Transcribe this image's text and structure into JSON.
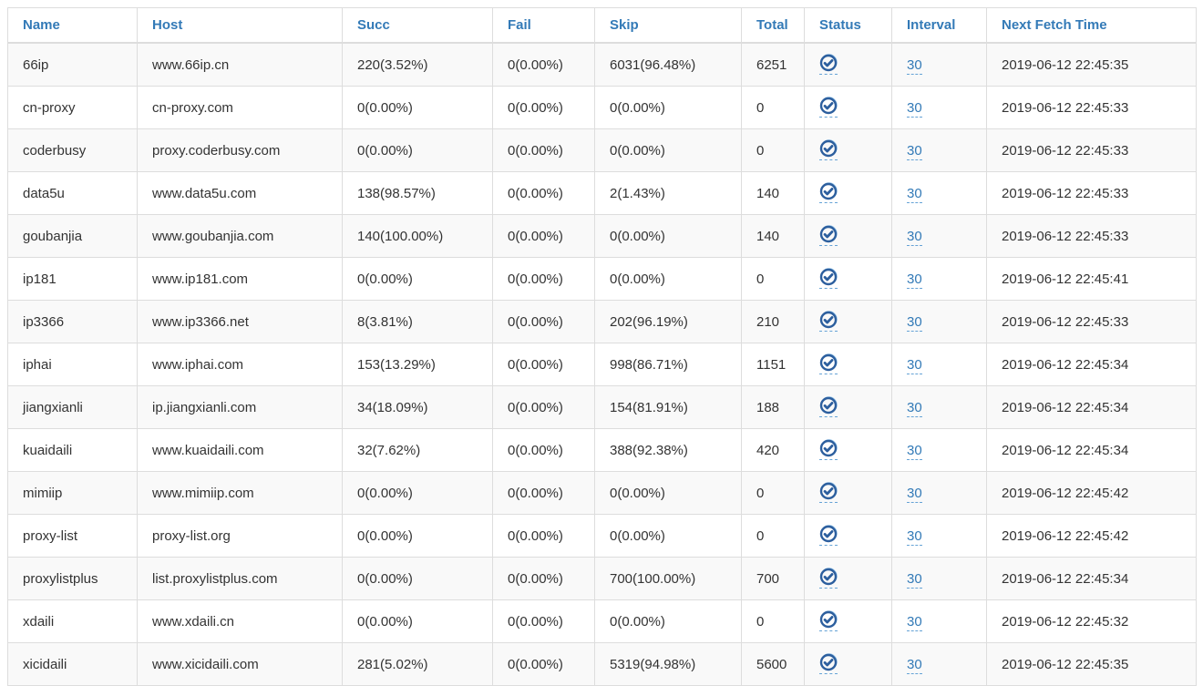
{
  "colors": {
    "header_text": "#337ab7",
    "link": "#337ab7",
    "status_icon": "#2d5f9e",
    "status_icon_halo": "#8fc0e8",
    "row_stripe": "#f9f9f9",
    "border": "#dddddd",
    "body_text": "#333333"
  },
  "table": {
    "columns": [
      {
        "key": "name",
        "label": "Name"
      },
      {
        "key": "host",
        "label": "Host"
      },
      {
        "key": "succ",
        "label": "Succ"
      },
      {
        "key": "fail",
        "label": "Fail"
      },
      {
        "key": "skip",
        "label": "Skip"
      },
      {
        "key": "total",
        "label": "Total"
      },
      {
        "key": "status",
        "label": "Status"
      },
      {
        "key": "interval",
        "label": "Interval"
      },
      {
        "key": "next_fetch_time",
        "label": "Next Fetch Time"
      }
    ],
    "status_icon_name": "check-circle-icon",
    "rows": [
      {
        "name": "66ip",
        "host": "www.66ip.cn",
        "succ": "220(3.52%)",
        "fail": "0(0.00%)",
        "skip": "6031(96.48%)",
        "total": "6251",
        "status": "ok",
        "interval": "30",
        "next_fetch_time": "2019-06-12 22:45:35"
      },
      {
        "name": "cn-proxy",
        "host": "cn-proxy.com",
        "succ": "0(0.00%)",
        "fail": "0(0.00%)",
        "skip": "0(0.00%)",
        "total": "0",
        "status": "ok",
        "interval": "30",
        "next_fetch_time": "2019-06-12 22:45:33"
      },
      {
        "name": "coderbusy",
        "host": "proxy.coderbusy.com",
        "succ": "0(0.00%)",
        "fail": "0(0.00%)",
        "skip": "0(0.00%)",
        "total": "0",
        "status": "ok",
        "interval": "30",
        "next_fetch_time": "2019-06-12 22:45:33"
      },
      {
        "name": "data5u",
        "host": "www.data5u.com",
        "succ": "138(98.57%)",
        "fail": "0(0.00%)",
        "skip": "2(1.43%)",
        "total": "140",
        "status": "ok",
        "interval": "30",
        "next_fetch_time": "2019-06-12 22:45:33"
      },
      {
        "name": "goubanjia",
        "host": "www.goubanjia.com",
        "succ": "140(100.00%)",
        "fail": "0(0.00%)",
        "skip": "0(0.00%)",
        "total": "140",
        "status": "ok",
        "interval": "30",
        "next_fetch_time": "2019-06-12 22:45:33"
      },
      {
        "name": "ip181",
        "host": "www.ip181.com",
        "succ": "0(0.00%)",
        "fail": "0(0.00%)",
        "skip": "0(0.00%)",
        "total": "0",
        "status": "ok",
        "interval": "30",
        "next_fetch_time": "2019-06-12 22:45:41"
      },
      {
        "name": "ip3366",
        "host": "www.ip3366.net",
        "succ": "8(3.81%)",
        "fail": "0(0.00%)",
        "skip": "202(96.19%)",
        "total": "210",
        "status": "ok",
        "interval": "30",
        "next_fetch_time": "2019-06-12 22:45:33"
      },
      {
        "name": "iphai",
        "host": "www.iphai.com",
        "succ": "153(13.29%)",
        "fail": "0(0.00%)",
        "skip": "998(86.71%)",
        "total": "1151",
        "status": "ok",
        "interval": "30",
        "next_fetch_time": "2019-06-12 22:45:34"
      },
      {
        "name": "jiangxianli",
        "host": "ip.jiangxianli.com",
        "succ": "34(18.09%)",
        "fail": "0(0.00%)",
        "skip": "154(81.91%)",
        "total": "188",
        "status": "ok",
        "interval": "30",
        "next_fetch_time": "2019-06-12 22:45:34"
      },
      {
        "name": "kuaidaili",
        "host": "www.kuaidaili.com",
        "succ": "32(7.62%)",
        "fail": "0(0.00%)",
        "skip": "388(92.38%)",
        "total": "420",
        "status": "ok",
        "interval": "30",
        "next_fetch_time": "2019-06-12 22:45:34"
      },
      {
        "name": "mimiip",
        "host": "www.mimiip.com",
        "succ": "0(0.00%)",
        "fail": "0(0.00%)",
        "skip": "0(0.00%)",
        "total": "0",
        "status": "ok",
        "interval": "30",
        "next_fetch_time": "2019-06-12 22:45:42"
      },
      {
        "name": "proxy-list",
        "host": "proxy-list.org",
        "succ": "0(0.00%)",
        "fail": "0(0.00%)",
        "skip": "0(0.00%)",
        "total": "0",
        "status": "ok",
        "interval": "30",
        "next_fetch_time": "2019-06-12 22:45:42"
      },
      {
        "name": "proxylistplus",
        "host": "list.proxylistplus.com",
        "succ": "0(0.00%)",
        "fail": "0(0.00%)",
        "skip": "700(100.00%)",
        "total": "700",
        "status": "ok",
        "interval": "30",
        "next_fetch_time": "2019-06-12 22:45:34"
      },
      {
        "name": "xdaili",
        "host": "www.xdaili.cn",
        "succ": "0(0.00%)",
        "fail": "0(0.00%)",
        "skip": "0(0.00%)",
        "total": "0",
        "status": "ok",
        "interval": "30",
        "next_fetch_time": "2019-06-12 22:45:32"
      },
      {
        "name": "xicidaili",
        "host": "www.xicidaili.com",
        "succ": "281(5.02%)",
        "fail": "0(0.00%)",
        "skip": "5319(94.98%)",
        "total": "5600",
        "status": "ok",
        "interval": "30",
        "next_fetch_time": "2019-06-12 22:45:35"
      }
    ]
  }
}
